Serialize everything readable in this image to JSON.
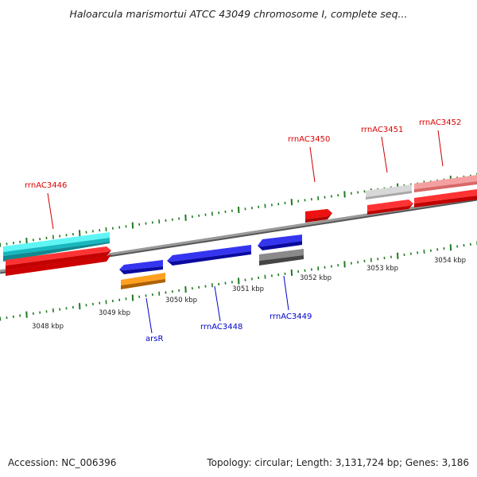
{
  "title": "Haloarcula marismortui ATCC 43049 chromosome I, complete seq...",
  "footer": {
    "accession": "Accession: NC_006396",
    "topology": "Topology: circular; Length: 3,131,724 bp; Genes: 3,186"
  },
  "colors": {
    "forward_label": "#dd0000",
    "reverse_label": "#0000cc",
    "tick": "#1f7a1f",
    "backbone": "#888888",
    "rrna": "#ee0000",
    "cds_reverse": "#1a1adb",
    "trna": "#22e0e8",
    "orange": "#f08c00",
    "pseudo_gray": "#707070",
    "light_gray": "#c0c0c0",
    "pink": "#f08080"
  },
  "axis_labels": [
    "3048 kbp",
    "3049 kbp",
    "3050 kbp",
    "3051 kbp",
    "3052 kbp",
    "3053 kbp",
    "3054 kbp"
  ],
  "forward_genes": [
    {
      "name": "rrnAC3446",
      "color": "rrna"
    },
    {
      "name": "rrnAC3450",
      "color": "rrna"
    },
    {
      "name": "rrnAC3451",
      "color": "rrna"
    },
    {
      "name": "rrnAC3452",
      "color": "rrna"
    }
  ],
  "reverse_genes": [
    {
      "name": "arsR",
      "color": "orange"
    },
    {
      "name": "rrnAC3448",
      "color": "cds_reverse"
    },
    {
      "name": "rrnAC3449",
      "color": "pseudo_gray"
    }
  ]
}
